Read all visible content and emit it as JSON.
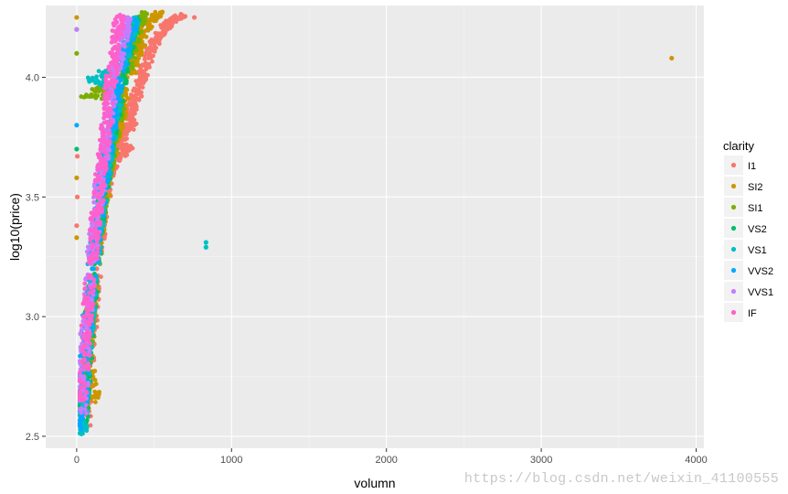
{
  "chart_data": {
    "type": "scatter",
    "title": "",
    "xlabel": "volumn",
    "ylabel": "log10(price)",
    "xlim": [
      -200,
      4050
    ],
    "ylim": [
      2.45,
      4.3
    ],
    "x_ticks": [
      0,
      1000,
      2000,
      3000,
      4000
    ],
    "x_tick_labels": [
      "0",
      "1000",
      "2000",
      "3000",
      "4000"
    ],
    "y_ticks": [
      2.5,
      3.0,
      3.5,
      4.0
    ],
    "y_tick_labels": [
      "2.5",
      "3.0",
      "3.5",
      "4.0"
    ],
    "grid": true,
    "legend": {
      "title": "clarity",
      "position": "right",
      "entries": [
        {
          "name": "I1",
          "color": "#F8766D"
        },
        {
          "name": "SI2",
          "color": "#CD9600"
        },
        {
          "name": "SI1",
          "color": "#7CAE00"
        },
        {
          "name": "VS2",
          "color": "#00BE67"
        },
        {
          "name": "VS1",
          "color": "#00BFC4"
        },
        {
          "name": "VVS2",
          "color": "#00A9FF"
        },
        {
          "name": "VVS1",
          "color": "#C77CFF"
        },
        {
          "name": "IF",
          "color": "#FF61CC"
        }
      ]
    },
    "series": [
      {
        "name": "I1",
        "color": "#F8766D",
        "points": [
          [
            60,
            2.55
          ],
          [
            70,
            2.7
          ],
          [
            90,
            2.9
          ],
          [
            110,
            3.05
          ],
          [
            130,
            3.2
          ],
          [
            150,
            3.35
          ],
          [
            170,
            3.45
          ],
          [
            200,
            3.55
          ],
          [
            240,
            3.65
          ],
          [
            270,
            3.72
          ],
          [
            310,
            3.78
          ],
          [
            340,
            3.85
          ],
          [
            370,
            3.9
          ],
          [
            400,
            3.95
          ],
          [
            430,
            4.02
          ],
          [
            470,
            4.1
          ],
          [
            510,
            4.15
          ],
          [
            560,
            4.2
          ],
          [
            620,
            4.24
          ],
          [
            680,
            4.26
          ],
          [
            760,
            4.25
          ],
          [
            4,
            3.5
          ],
          [
            4,
            3.67
          ],
          [
            0,
            3.38
          ],
          [
            330,
            3.7
          ],
          [
            360,
            3.8
          ]
        ]
      },
      {
        "name": "SI2",
        "color": "#CD9600",
        "points": [
          [
            50,
            2.6
          ],
          [
            70,
            2.8
          ],
          [
            90,
            3.0
          ],
          [
            110,
            3.15
          ],
          [
            130,
            3.28
          ],
          [
            160,
            3.42
          ],
          [
            190,
            3.55
          ],
          [
            220,
            3.65
          ],
          [
            260,
            3.78
          ],
          [
            290,
            3.85
          ],
          [
            320,
            3.95
          ],
          [
            350,
            4.02
          ],
          [
            390,
            4.1
          ],
          [
            430,
            4.18
          ],
          [
            480,
            4.24
          ],
          [
            540,
            4.27
          ],
          [
            120,
            2.67
          ],
          [
            3842,
            4.08
          ],
          [
            0,
            3.58
          ],
          [
            0,
            3.33
          ],
          [
            0,
            4.25
          ],
          [
            120,
            3.95
          ]
        ]
      },
      {
        "name": "SI1",
        "color": "#7CAE00",
        "points": [
          [
            40,
            2.55
          ],
          [
            60,
            2.75
          ],
          [
            80,
            2.95
          ],
          [
            100,
            3.1
          ],
          [
            120,
            3.25
          ],
          [
            140,
            3.38
          ],
          [
            170,
            3.5
          ],
          [
            200,
            3.62
          ],
          [
            230,
            3.72
          ],
          [
            260,
            3.82
          ],
          [
            290,
            3.92
          ],
          [
            320,
            4.02
          ],
          [
            360,
            4.12
          ],
          [
            400,
            4.22
          ],
          [
            440,
            4.27
          ],
          [
            60,
            3.92
          ],
          [
            0,
            4.1
          ]
        ]
      },
      {
        "name": "VS2",
        "color": "#00BE67",
        "points": [
          [
            35,
            2.52
          ],
          [
            55,
            2.72
          ],
          [
            75,
            2.92
          ],
          [
            95,
            3.08
          ],
          [
            115,
            3.22
          ],
          [
            135,
            3.35
          ],
          [
            160,
            3.48
          ],
          [
            190,
            3.6
          ],
          [
            220,
            3.72
          ],
          [
            250,
            3.83
          ],
          [
            280,
            3.95
          ],
          [
            310,
            4.06
          ],
          [
            350,
            4.17
          ],
          [
            390,
            4.25
          ],
          [
            0,
            4.2
          ],
          [
            0,
            3.7
          ]
        ]
      },
      {
        "name": "VS1",
        "color": "#00BFC4",
        "points": [
          [
            30,
            2.51
          ],
          [
            50,
            2.7
          ],
          [
            70,
            2.9
          ],
          [
            90,
            3.05
          ],
          [
            110,
            3.2
          ],
          [
            130,
            3.32
          ],
          [
            155,
            3.45
          ],
          [
            180,
            3.58
          ],
          [
            210,
            3.7
          ],
          [
            240,
            3.82
          ],
          [
            270,
            3.94
          ],
          [
            300,
            4.05
          ],
          [
            340,
            4.16
          ],
          [
            380,
            4.25
          ],
          [
            835,
            3.31
          ],
          [
            835,
            3.29
          ],
          [
            80,
            3.99
          ]
        ]
      },
      {
        "name": "VVS2",
        "color": "#00A9FF",
        "points": [
          [
            30,
            2.53
          ],
          [
            45,
            2.72
          ],
          [
            60,
            2.9
          ],
          [
            80,
            3.05
          ],
          [
            100,
            3.2
          ],
          [
            120,
            3.32
          ],
          [
            145,
            3.45
          ],
          [
            170,
            3.57
          ],
          [
            200,
            3.7
          ],
          [
            230,
            3.82
          ],
          [
            260,
            3.94
          ],
          [
            290,
            4.05
          ],
          [
            330,
            4.16
          ],
          [
            370,
            4.24
          ],
          [
            0,
            3.8
          ]
        ]
      },
      {
        "name": "VVS1",
        "color": "#C77CFF",
        "points": [
          [
            30,
            2.6
          ],
          [
            45,
            2.78
          ],
          [
            60,
            2.95
          ],
          [
            75,
            3.08
          ],
          [
            95,
            3.22
          ],
          [
            115,
            3.35
          ],
          [
            135,
            3.47
          ],
          [
            160,
            3.6
          ],
          [
            185,
            3.72
          ],
          [
            210,
            3.85
          ],
          [
            240,
            3.97
          ],
          [
            270,
            4.08
          ],
          [
            300,
            4.18
          ],
          [
            330,
            4.25
          ],
          [
            0,
            4.2
          ]
        ]
      },
      {
        "name": "IF",
        "color": "#FF61CC",
        "points": [
          [
            35,
            2.65
          ],
          [
            50,
            2.82
          ],
          [
            65,
            2.98
          ],
          [
            80,
            3.1
          ],
          [
            100,
            3.24
          ],
          [
            120,
            3.37
          ],
          [
            140,
            3.5
          ],
          [
            160,
            3.62
          ],
          [
            180,
            3.74
          ],
          [
            200,
            3.86
          ],
          [
            220,
            3.98
          ],
          [
            240,
            4.08
          ],
          [
            260,
            4.18
          ],
          [
            280,
            4.26
          ]
        ]
      }
    ]
  },
  "watermark": "https://blog.csdn.net/weixin_41100555"
}
